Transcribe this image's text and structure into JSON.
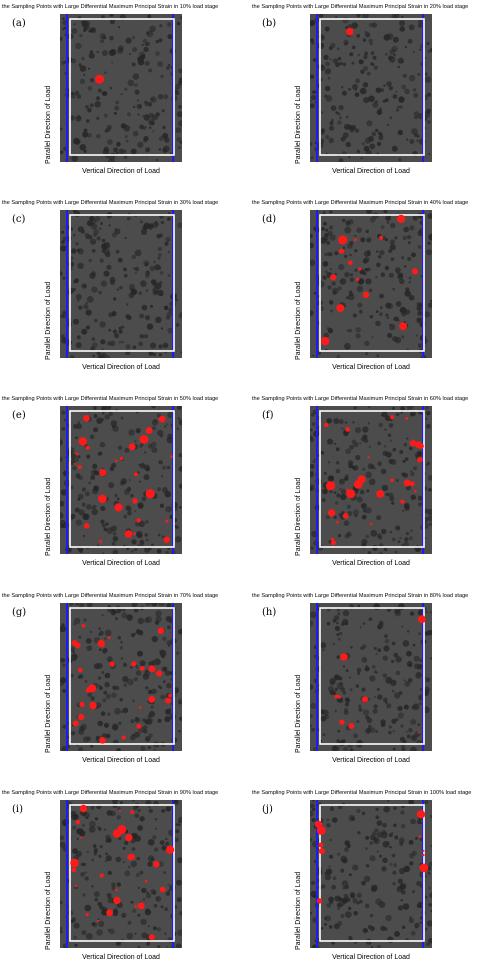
{
  "figure": {
    "panels": [
      {
        "label": "(a)",
        "title": "the Sampling Points with Large Differential Maximum Principal Strain in 10% load stage",
        "xlabel": "Vertical Direction of Load",
        "ylabel": "Parallel Direction of Load",
        "load_stage_percent": 10,
        "red_spot_density": "very low"
      },
      {
        "label": "(b)",
        "title": "the Sampling Points with Large Differential Maximum Principal Strain in 20% load stage",
        "xlabel": "Vertical Direction of Load",
        "ylabel": "Parallel Direction of Load",
        "load_stage_percent": 20,
        "red_spot_density": "very low"
      },
      {
        "label": "(c)",
        "title": "the Sampling Points with Large Differential Maximum Principal Strain in 30% load stage",
        "xlabel": "Vertical Direction of Load",
        "ylabel": "Parallel Direction of Load",
        "load_stage_percent": 30,
        "red_spot_density": "none"
      },
      {
        "label": "(d)",
        "title": "the Sampling Points with Large Differential Maximum Principal Strain in 40% load stage",
        "xlabel": "Vertical Direction of Load",
        "ylabel": "Parallel Direction of Load",
        "load_stage_percent": 40,
        "red_spot_density": "moderate"
      },
      {
        "label": "(e)",
        "title": "the Sampling Points with Large Differential Maximum Principal Strain in 50% load stage",
        "xlabel": "Vertical Direction of Load",
        "ylabel": "Parallel Direction of Load",
        "load_stage_percent": 50,
        "red_spot_density": "high"
      },
      {
        "label": "(f)",
        "title": "the Sampling Points with Large Differential Maximum Principal Strain in 60% load stage",
        "xlabel": "Vertical Direction of Load",
        "ylabel": "Parallel Direction of Load",
        "load_stage_percent": 60,
        "red_spot_density": "high"
      },
      {
        "label": "(g)",
        "title": "the Sampling Points with Large Differential Maximum Principal Strain in 70% load stage",
        "xlabel": "Vertical Direction of Load",
        "ylabel": "Parallel Direction of Load",
        "load_stage_percent": 70,
        "red_spot_density": "high"
      },
      {
        "label": "(h)",
        "title": "the Sampling Points with Large Differential Maximum Principal Strain in 80% load stage",
        "xlabel": "Vertical Direction of Load",
        "ylabel": "Parallel Direction of Load",
        "load_stage_percent": 80,
        "red_spot_density": "low"
      },
      {
        "label": "(i)",
        "title": "the Sampling Points with Large Differential Maximum Principal Strain in 90% load stage",
        "xlabel": "Vertical Direction of Load",
        "ylabel": "Parallel Direction of Load",
        "load_stage_percent": 90,
        "red_spot_density": "high"
      },
      {
        "label": "(j)",
        "title": "the Sampling Points with Large Differential Maximum Principal Strain in 100% load stage",
        "xlabel": "Vertical Direction of Load",
        "ylabel": "Parallel Direction of Load",
        "load_stage_percent": 100,
        "red_spot_density": "edges"
      }
    ]
  },
  "colors": {
    "background_speckle": "#4c4c4c",
    "speckle_dark": "#262626",
    "frame": "#ffffff",
    "load_lines": "#1a1aff",
    "strain_points": "#ff1a1a"
  },
  "chart_data": {
    "type": "heatmap",
    "description_note": "",
    "panels": [
      {
        "label": "(a)",
        "load_stage_percent": 10
      },
      {
        "label": "(b)",
        "load_stage_percent": 20
      },
      {
        "label": "(c)",
        "load_stage_percent": 30
      },
      {
        "label": "(d)",
        "load_stage_percent": 40
      },
      {
        "label": "(e)",
        "load_stage_percent": 50
      },
      {
        "label": "(f)",
        "load_stage_percent": 60
      },
      {
        "label": "(g)",
        "load_stage_percent": 70
      },
      {
        "label": "(h)",
        "load_stage_percent": 80
      },
      {
        "label": "(i)",
        "load_stage_percent": 90
      },
      {
        "label": "(j)",
        "load_stage_percent": 100
      }
    ],
    "xlabel": "Vertical Direction of Load",
    "ylabel": "Parallel Direction of Load"
  }
}
